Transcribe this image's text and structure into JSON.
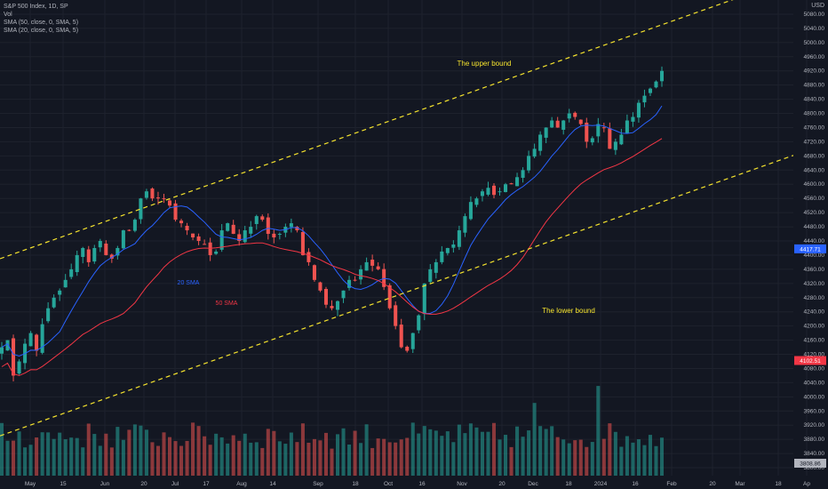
{
  "legend": {
    "symbol": "S&P 500 Index, 1D, SP",
    "vol": "Vol",
    "sma50": "SMA (50, close, 0, SMA, 5)",
    "sma20": "SMA (20, close, 0, SMA, 5)"
  },
  "currency": "USD",
  "colors": {
    "background": "#131722",
    "up": "#26a69a",
    "down": "#ef5350",
    "sma20": "#2962ff",
    "sma50": "#f23645",
    "channel": "#f5e32e",
    "text": "#b2b5be"
  },
  "chart_data": {
    "type": "candlestick",
    "y_axis": {
      "side": "right",
      "ticks": [
        "5080.00",
        "5040.00",
        "5000.00",
        "4960.00",
        "4920.00",
        "4880.00",
        "4840.00",
        "4800.00",
        "4760.00",
        "4720.00",
        "4680.00",
        "4640.00",
        "4600.00",
        "4560.00",
        "4520.00",
        "4480.00",
        "4440.00",
        "4400.00",
        "4360.00",
        "4320.00",
        "4280.00",
        "4240.00",
        "4200.00",
        "4160.00",
        "4120.00",
        "4080.00",
        "4040.00",
        "4000.00",
        "3960.00",
        "3920.00",
        "3880.00",
        "3840.00",
        "3800.00"
      ],
      "ylim": [
        3770,
        5100
      ]
    },
    "x_axis": {
      "ticks": [
        "May",
        "15",
        "Jun",
        "20",
        "Jul",
        "17",
        "Aug",
        "14",
        "Sep",
        "18",
        "Oct",
        "16",
        "Nov",
        "20",
        "Dec",
        "18",
        "2024",
        "16",
        "Feb",
        "20",
        "Mar",
        "18",
        "Ap"
      ]
    },
    "price_labels": {
      "sma20": "4417.71",
      "sma50": "4102.51",
      "volume": "3808.86"
    },
    "sma_values": {
      "sma20_last": 4417.71,
      "sma50_last": 4102.51
    },
    "annotations": [
      {
        "text": "The upper bound",
        "color": "#f5e32e"
      },
      {
        "text": "The lower bound",
        "color": "#f5e32e"
      },
      {
        "text": "20 SMA",
        "color": "#2962ff"
      },
      {
        "text": "50 SMA",
        "color": "#f23645"
      }
    ],
    "channel": {
      "upper": {
        "start": [
          "May",
          4420
        ],
        "end": [
          "Feb",
          5060
        ]
      },
      "lower": {
        "start": [
          "May",
          3920
        ],
        "end": [
          "Feb",
          4560
        ]
      }
    },
    "close_waypoints": [
      4140,
      4160,
      4060,
      4100,
      4150,
      4180,
      4130,
      4205,
      4250,
      4280,
      4300,
      4330,
      4360,
      4400,
      4420,
      4380,
      4420,
      4440,
      4400,
      4390,
      4420,
      4470,
      4470,
      4500,
      4560,
      4580,
      4560,
      4560,
      4560,
      4540,
      4500,
      4490,
      4470,
      4450,
      4440,
      4430,
      4400,
      4410,
      4470,
      4490,
      4460,
      4440,
      4470,
      4480,
      4510,
      4500,
      4460,
      4450,
      4460,
      4480,
      4490,
      4470,
      4400,
      4380,
      4330,
      4300,
      4260,
      4250,
      4270,
      4300,
      4330,
      4330,
      4360,
      4380,
      4370,
      4360,
      4310,
      4250,
      4200,
      4140,
      4130,
      4180,
      4230,
      4320,
      4360,
      4380,
      4410,
      4420,
      4430,
      4470,
      4510,
      4550,
      4560,
      4580,
      4590,
      4570,
      4580,
      4600,
      4600,
      4620,
      4640,
      4680,
      4700,
      4740,
      4760,
      4780,
      4760,
      4780,
      4800,
      4790,
      4770,
      4720,
      4730,
      4770,
      4760,
      4700,
      4720,
      4740,
      4780,
      4790,
      4830,
      4850,
      4870,
      4890,
      4920
    ]
  }
}
